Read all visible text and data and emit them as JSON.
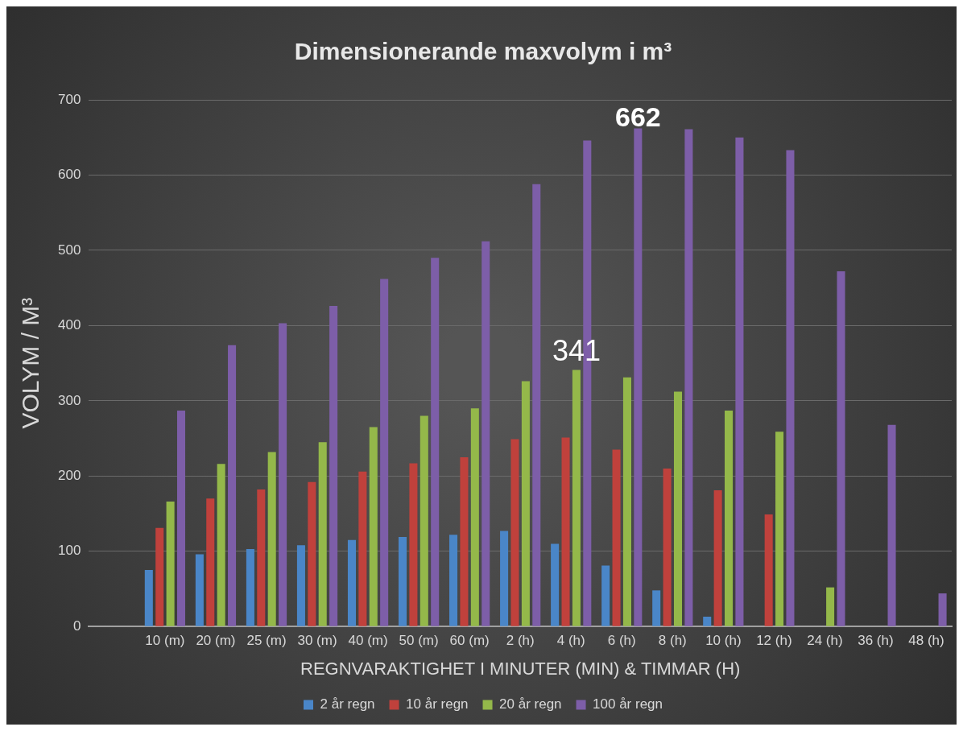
{
  "chart_data": {
    "type": "bar",
    "title": "Dimensionerande maxvolym i m³",
    "xlabel": "REGNVARAKTIGHET I MINUTER (MIN) & TIMMAR (H)",
    "ylabel": "VOLYM / M³",
    "categories": [
      null,
      "10 (m)",
      "20 (m)",
      "25 (m)",
      "30 (m)",
      "40 (m)",
      "50 (m)",
      "60 (m)",
      "2 (h)",
      "4 (h)",
      "6 (h)",
      "8 (h)",
      "10 (h)",
      "12 (h)",
      "24 (h)",
      "36 (h)",
      "48 (h)"
    ],
    "series": [
      {
        "name": "2 år regn",
        "color": "#4a86c8",
        "values": [
          null,
          75,
          96,
          103,
          108,
          115,
          119,
          122,
          127,
          110,
          81,
          48,
          13,
          null,
          null,
          null,
          null
        ]
      },
      {
        "name": "10 år regn",
        "color": "#c0413c",
        "values": [
          null,
          131,
          170,
          182,
          192,
          206,
          217,
          225,
          249,
          251,
          235,
          210,
          181,
          149,
          null,
          null,
          null
        ]
      },
      {
        "name": "20 år regn",
        "color": "#94b84a",
        "values": [
          null,
          166,
          216,
          232,
          245,
          265,
          280,
          290,
          326,
          341,
          331,
          312,
          287,
          259,
          52,
          null,
          null
        ],
        "value_labels": [
          null,
          null,
          null,
          null,
          null,
          null,
          null,
          null,
          null,
          "341",
          null,
          null,
          null,
          null,
          null,
          null,
          null
        ]
      },
      {
        "name": "100 år regn",
        "color": "#7d5ea8",
        "values": [
          null,
          287,
          374,
          403,
          426,
          462,
          490,
          512,
          588,
          646,
          662,
          661,
          650,
          633,
          472,
          268,
          44
        ],
        "value_labels": [
          null,
          null,
          null,
          null,
          null,
          null,
          null,
          null,
          null,
          null,
          "662",
          null,
          null,
          null,
          null,
          null,
          null
        ]
      }
    ],
    "ylim": [
      0,
      700
    ],
    "yticks": [
      0,
      100,
      200,
      300,
      400,
      500,
      600,
      700
    ],
    "grid": "y",
    "legend": "bottom"
  }
}
